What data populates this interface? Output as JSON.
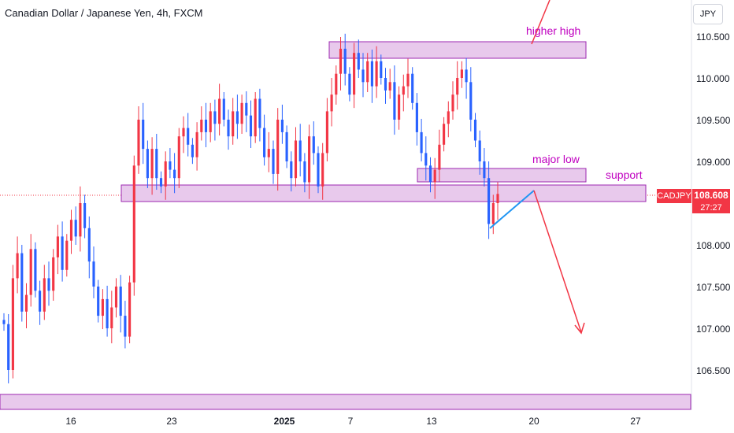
{
  "header": {
    "title": "Canadian Dollar / Japanese Yen, 4h, FXCM"
  },
  "axis": {
    "currency_label": "JPY",
    "y_ticks": [
      "110.500",
      "110.000",
      "109.500",
      "109.000",
      "108.000",
      "107.500",
      "107.000",
      "106.500"
    ],
    "x_ticks": [
      "16",
      "23",
      "2025",
      "7",
      "13",
      "20",
      "27"
    ]
  },
  "price_tag": {
    "symbol": "CADJPY",
    "price": "108.608",
    "timer": "27:27"
  },
  "annotations": {
    "higher_high": "higher high",
    "major_low": "major low",
    "support": "support"
  },
  "colors": {
    "up": "#f23645",
    "down": "#2962ff",
    "zone_fill": "#e8c9ec",
    "zone_stroke": "#9c27b0",
    "annotation_text": "#c000c0",
    "arrow": "#f23645",
    "trendline": "#2196f3"
  },
  "chart_data": {
    "type": "candlestick",
    "symbol": "CADJPY",
    "timeframe": "4h",
    "last_price": 108.608,
    "ylim": [
      106.2,
      110.9
    ],
    "x_labels": [
      "16",
      "23",
      "2025",
      "7",
      "13",
      "20",
      "27"
    ],
    "grid": false,
    "zones": [
      {
        "name": "higher high",
        "low": 110.27,
        "high": 110.47
      },
      {
        "name": "major low",
        "low": 108.74,
        "high": 108.91
      },
      {
        "name": "support",
        "low": 108.51,
        "high": 108.71
      },
      {
        "name": "",
        "low": 106.2,
        "high": 106.38
      }
    ],
    "candles": [
      [
        107.1,
        107.05
      ],
      [
        107.05,
        106.5
      ],
      [
        106.5,
        107.6
      ],
      [
        107.6,
        107.9
      ],
      [
        107.9,
        107.2
      ],
      [
        107.2,
        107.4
      ],
      [
        107.4,
        107.95
      ],
      [
        107.95,
        107.45
      ],
      [
        107.45,
        107.2
      ],
      [
        107.2,
        107.6
      ],
      [
        107.6,
        107.45
      ],
      [
        107.45,
        107.85
      ],
      [
        107.85,
        108.1
      ],
      [
        108.1,
        107.7
      ],
      [
        107.7,
        108.05
      ],
      [
        108.05,
        108.3
      ],
      [
        108.3,
        108.1
      ],
      [
        108.1,
        108.5
      ],
      [
        108.5,
        108.2
      ],
      [
        108.2,
        107.8
      ],
      [
        107.8,
        107.5
      ],
      [
        107.5,
        107.15
      ],
      [
        107.15,
        107.35
      ],
      [
        107.35,
        107.0
      ],
      [
        107.0,
        107.25
      ],
      [
        107.25,
        107.5
      ],
      [
        107.5,
        107.15
      ],
      [
        107.15,
        106.9
      ],
      [
        106.9,
        107.55
      ],
      [
        107.55,
        108.95
      ],
      [
        108.95,
        109.5
      ],
      [
        109.5,
        109.15
      ],
      [
        109.15,
        108.8
      ],
      [
        108.8,
        109.15
      ],
      [
        109.15,
        108.8
      ],
      [
        108.8,
        108.7
      ],
      [
        108.7,
        109.0
      ],
      [
        109.0,
        108.9
      ],
      [
        108.9,
        108.8
      ],
      [
        108.8,
        109.3
      ],
      [
        109.3,
        109.4
      ],
      [
        109.4,
        109.2
      ],
      [
        109.2,
        109.05
      ],
      [
        109.05,
        109.35
      ],
      [
        109.35,
        109.5
      ],
      [
        109.5,
        109.35
      ],
      [
        109.35,
        109.6
      ],
      [
        109.6,
        109.45
      ],
      [
        109.45,
        109.75
      ],
      [
        109.75,
        109.5
      ],
      [
        109.5,
        109.3
      ],
      [
        109.3,
        109.6
      ],
      [
        109.6,
        109.45
      ],
      [
        109.45,
        109.7
      ],
      [
        109.7,
        109.55
      ],
      [
        109.55,
        109.3
      ],
      [
        109.3,
        109.75
      ],
      [
        109.75,
        109.4
      ],
      [
        109.4,
        109.05
      ],
      [
        109.05,
        109.15
      ],
      [
        109.15,
        108.85
      ],
      [
        108.85,
        109.5
      ],
      [
        109.5,
        109.35
      ],
      [
        109.35,
        109.0
      ],
      [
        109.0,
        108.8
      ],
      [
        108.8,
        109.25
      ],
      [
        109.25,
        109.0
      ],
      [
        109.0,
        108.75
      ],
      [
        108.75,
        109.3
      ],
      [
        109.3,
        109.1
      ],
      [
        109.1,
        108.7
      ],
      [
        108.7,
        109.1
      ],
      [
        109.1,
        109.6
      ],
      [
        109.6,
        109.8
      ],
      [
        109.8,
        110.05
      ],
      [
        110.05,
        110.35
      ],
      [
        110.35,
        110.05
      ],
      [
        110.05,
        109.8
      ],
      [
        109.8,
        110.3
      ],
      [
        110.3,
        110.1
      ],
      [
        110.1,
        109.95
      ],
      [
        109.95,
        110.2
      ],
      [
        110.2,
        109.9
      ],
      [
        109.9,
        110.2
      ],
      [
        110.2,
        110.0
      ],
      [
        110.0,
        109.85
      ],
      [
        109.85,
        109.95
      ],
      [
        109.95,
        109.5
      ],
      [
        109.5,
        109.8
      ],
      [
        109.8,
        109.9
      ],
      [
        109.9,
        110.05
      ],
      [
        110.05,
        109.7
      ],
      [
        109.7,
        109.35
      ],
      [
        109.35,
        109.1
      ],
      [
        109.1,
        108.95
      ],
      [
        108.95,
        108.75
      ],
      [
        108.75,
        108.9
      ],
      [
        108.9,
        109.2
      ],
      [
        109.2,
        109.45
      ],
      [
        109.45,
        109.6
      ],
      [
        109.6,
        109.8
      ],
      [
        109.8,
        110.0
      ],
      [
        110.0,
        110.1
      ],
      [
        110.1,
        109.95
      ],
      [
        109.95,
        109.5
      ],
      [
        109.5,
        109.25
      ],
      [
        109.25,
        109.0
      ],
      [
        109.0,
        108.8
      ],
      [
        108.8,
        108.25
      ],
      [
        108.25,
        108.5
      ],
      [
        108.5,
        108.61
      ]
    ]
  }
}
